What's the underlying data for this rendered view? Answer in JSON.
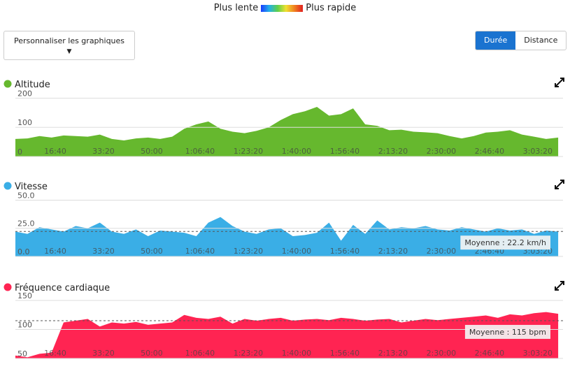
{
  "legend": {
    "slow": "Plus lente",
    "fast": "Plus rapide"
  },
  "customize_button": "Personnaliser les graphiques",
  "toggle": {
    "active": "Durée",
    "other": "Distance"
  },
  "chart_data": [
    {
      "type": "area",
      "title": "Altitude",
      "color": "#66b82e",
      "x": [
        0,
        250,
        500,
        750,
        1000,
        1250,
        1500,
        1750,
        2000,
        2250,
        2500,
        2750,
        3000,
        3250,
        3500,
        3750,
        4000,
        4250,
        4500,
        4750,
        5000,
        5250,
        5500,
        5750,
        6000,
        6250,
        6500,
        6750,
        7000,
        7250,
        7500,
        7750,
        8000,
        8250,
        8500,
        8750,
        9000,
        9250,
        9500,
        9750,
        10000,
        10250,
        10500,
        10750,
        11000,
        11250
      ],
      "values": [
        60,
        62,
        70,
        65,
        72,
        70,
        68,
        75,
        60,
        55,
        62,
        65,
        60,
        68,
        95,
        110,
        120,
        95,
        85,
        80,
        88,
        100,
        125,
        145,
        155,
        170,
        140,
        145,
        165,
        110,
        105,
        90,
        92,
        85,
        83,
        80,
        70,
        62,
        70,
        82,
        85,
        90,
        75,
        68,
        60,
        65
      ],
      "xlim": [
        0,
        11350
      ],
      "ylim": [
        0,
        225
      ],
      "yticks": [
        0,
        100,
        200
      ],
      "xticks": [
        {
          "value": 1000,
          "label": "16:40"
        },
        {
          "value": 2000,
          "label": "33:20"
        },
        {
          "value": 3000,
          "label": "50:00"
        },
        {
          "value": 4000,
          "label": "1:06:40"
        },
        {
          "value": 5000,
          "label": "1:23:20"
        },
        {
          "value": 6000,
          "label": "1:40:00"
        },
        {
          "value": 7000,
          "label": "1:56:40"
        },
        {
          "value": 8000,
          "label": "2:13:20"
        },
        {
          "value": 9000,
          "label": "2:30:00"
        },
        {
          "value": 10000,
          "label": "2:46:40"
        },
        {
          "value": 11000,
          "label": "3:03:20"
        }
      ],
      "grid": true
    },
    {
      "type": "area",
      "title": "Vitesse",
      "color": "#3aaee6",
      "x": [
        0,
        250,
        500,
        750,
        1000,
        1250,
        1500,
        1750,
        2000,
        2250,
        2500,
        2750,
        3000,
        3250,
        3500,
        3750,
        4000,
        4250,
        4500,
        4750,
        5000,
        5250,
        5500,
        5750,
        6000,
        6250,
        6500,
        6750,
        7000,
        7250,
        7500,
        7750,
        8000,
        8250,
        8500,
        8750,
        9000,
        9250,
        9500,
        9750,
        10000,
        10250,
        10500,
        10750,
        11000,
        11250
      ],
      "values": [
        22,
        20,
        26,
        24,
        22,
        27,
        25,
        30,
        22,
        20,
        24,
        18,
        23,
        22,
        21,
        18,
        30,
        35,
        27,
        22,
        20,
        24,
        25,
        18,
        19,
        21,
        30,
        14,
        28,
        20,
        32,
        24,
        26,
        25,
        27,
        24,
        23,
        26,
        24,
        22,
        25,
        23,
        24,
        20,
        23,
        22
      ],
      "xlim": [
        0,
        11350
      ],
      "ylim": [
        0,
        54
      ],
      "yticks": [
        {
          "value": 0,
          "label": "0.0"
        },
        {
          "value": 25,
          "label": "25.0"
        },
        {
          "value": 50,
          "label": "50.0"
        }
      ],
      "xticks": [
        {
          "value": 1000,
          "label": "16:40"
        },
        {
          "value": 2000,
          "label": "33:20"
        },
        {
          "value": 3000,
          "label": "50:00"
        },
        {
          "value": 4000,
          "label": "1:06:40"
        },
        {
          "value": 5000,
          "label": "1:23:20"
        },
        {
          "value": 6000,
          "label": "1:40:00"
        },
        {
          "value": 7000,
          "label": "1:56:40"
        },
        {
          "value": 8000,
          "label": "2:13:20"
        },
        {
          "value": 9000,
          "label": "2:30:00"
        },
        {
          "value": 10000,
          "label": "2:46:40"
        },
        {
          "value": 11000,
          "label": "3:03:20"
        }
      ],
      "grid": true,
      "average": {
        "value": 22.2,
        "label": "Moyenne : 22.2 km/h"
      }
    },
    {
      "type": "area",
      "title": "Fréquence cardiaque",
      "color": "#ff2452",
      "x": [
        0,
        250,
        500,
        750,
        1000,
        1250,
        1500,
        1750,
        2000,
        2250,
        2500,
        2750,
        3000,
        3250,
        3500,
        3750,
        4000,
        4250,
        4500,
        4750,
        5000,
        5250,
        5500,
        5750,
        6000,
        6250,
        6500,
        6750,
        7000,
        7250,
        7500,
        7750,
        8000,
        8250,
        8500,
        8750,
        9000,
        9250,
        9500,
        9750,
        10000,
        10250,
        10500,
        10750,
        11000,
        11250
      ],
      "values": [
        55,
        52,
        58,
        60,
        112,
        115,
        118,
        105,
        112,
        110,
        113,
        108,
        110,
        112,
        125,
        120,
        118,
        122,
        110,
        118,
        115,
        118,
        120,
        115,
        117,
        118,
        116,
        120,
        118,
        115,
        117,
        118,
        112,
        115,
        118,
        116,
        118,
        120,
        122,
        124,
        120,
        126,
        124,
        128,
        130,
        127
      ],
      "xlim": [
        0,
        11350
      ],
      "ylim": [
        50,
        162
      ],
      "yticks": [
        50,
        100,
        150
      ],
      "xticks": [
        {
          "value": 1000,
          "label": "16:40"
        },
        {
          "value": 2000,
          "label": "33:20"
        },
        {
          "value": 3000,
          "label": "50:00"
        },
        {
          "value": 4000,
          "label": "1:06:40"
        },
        {
          "value": 5000,
          "label": "1:23:20"
        },
        {
          "value": 6000,
          "label": "1:40:00"
        },
        {
          "value": 7000,
          "label": "1:56:40"
        },
        {
          "value": 8000,
          "label": "2:13:20"
        },
        {
          "value": 9000,
          "label": "2:30:00"
        },
        {
          "value": 10000,
          "label": "2:46:40"
        },
        {
          "value": 11000,
          "label": "3:03:20"
        }
      ],
      "grid": true,
      "average": {
        "value": 115,
        "label": "Moyenne : 115 bpm"
      }
    }
  ]
}
